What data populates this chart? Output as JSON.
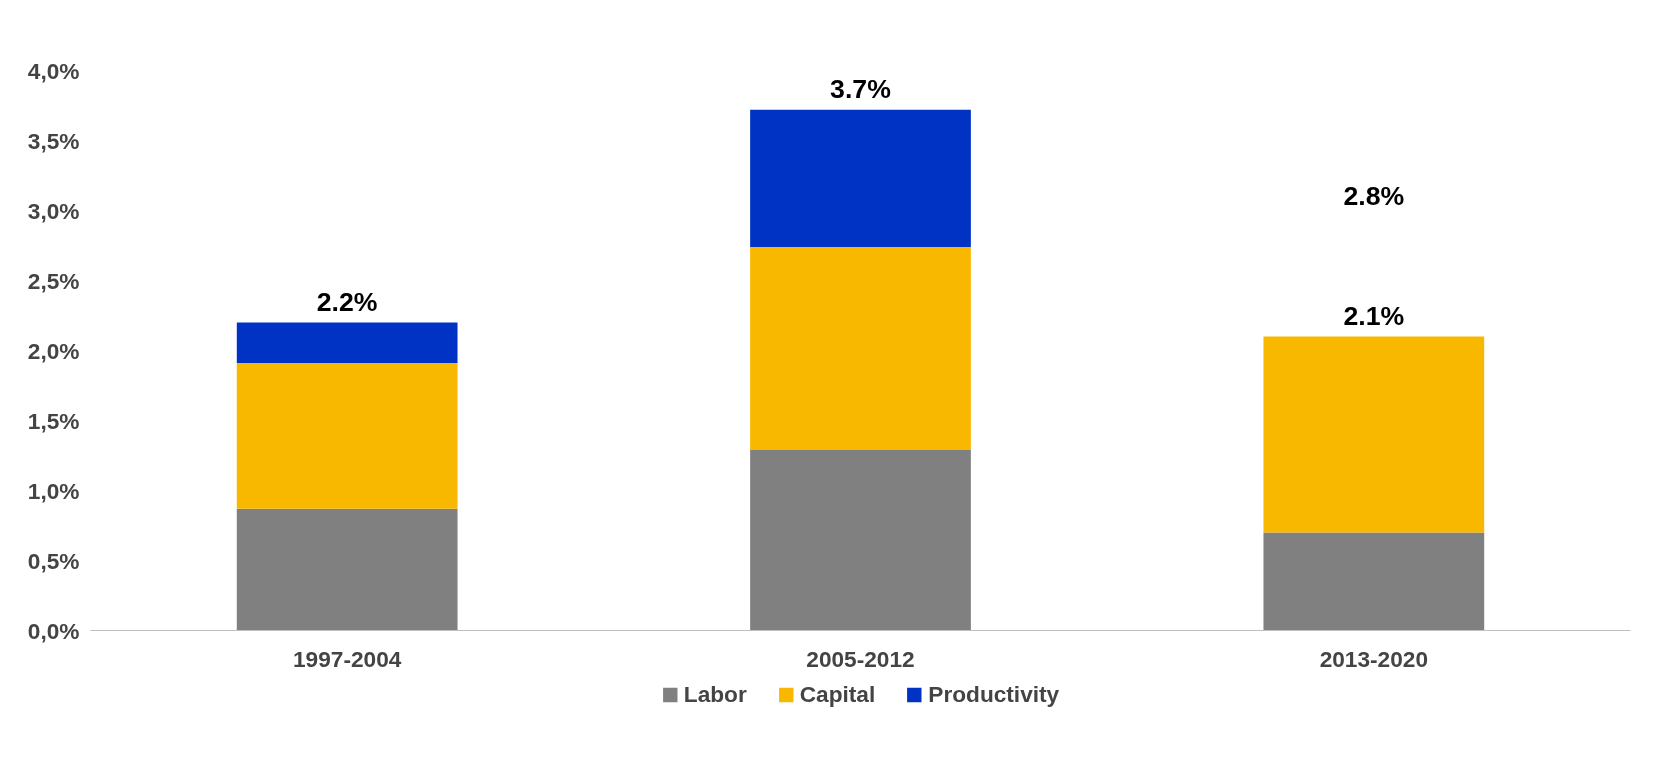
{
  "chart_data": {
    "type": "bar",
    "stacked": true,
    "categories": [
      "1997-2004",
      "2005-2012",
      "2013-2020"
    ],
    "series": [
      {
        "name": "Labor",
        "color": "#808080",
        "values": [
          0.87,
          1.29,
          0.7
        ]
      },
      {
        "name": "Capital",
        "color": "#f9b800",
        "values": [
          1.04,
          1.45,
          1.4
        ]
      },
      {
        "name": "Productivity",
        "color": "#0033c4",
        "values": [
          0.29,
          0.98,
          0
        ]
      }
    ],
    "totals": [
      "2.2%",
      "3.7%",
      "2.1%"
    ],
    "annotations": [
      "2.8%"
    ],
    "ylim": [
      0,
      4.0
    ],
    "yticks": [
      {
        "value": 0,
        "label": "0,0%"
      },
      {
        "value": 0.5,
        "label": "0,5%"
      },
      {
        "value": 1.0,
        "label": "1,0%"
      },
      {
        "value": 1.5,
        "label": "1,5%"
      },
      {
        "value": 2.0,
        "label": "2,0%"
      },
      {
        "value": 2.5,
        "label": "2,5%"
      },
      {
        "value": 3.0,
        "label": "3,0%"
      },
      {
        "value": 3.5,
        "label": "3,5%"
      },
      {
        "value": 4.0,
        "label": "4,0%"
      }
    ],
    "grid": false,
    "legend": "bottom"
  }
}
